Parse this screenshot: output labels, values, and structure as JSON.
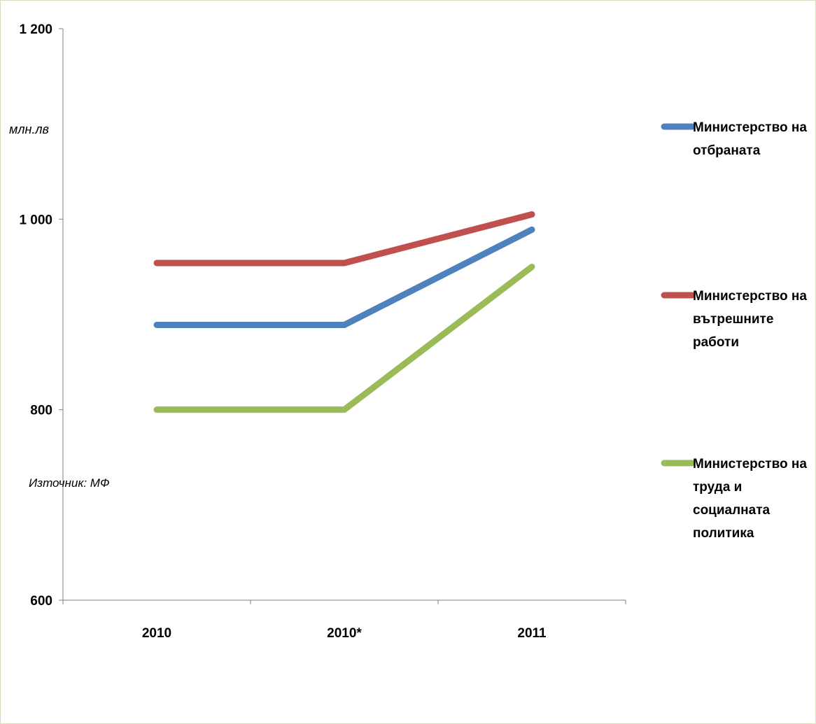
{
  "chart_data": {
    "type": "line",
    "categories": [
      "2010",
      "2010*",
      "2011"
    ],
    "ylim": [
      600,
      1200
    ],
    "yticks": [
      600,
      800,
      1000,
      1200
    ],
    "ytick_labels": [
      "600",
      "800",
      "1 000",
      "1 200"
    ],
    "ylabel": "млн.лв",
    "grid": false,
    "legend_position": "right",
    "series": [
      {
        "name_lines": [
          "Министерство на",
          "отбраната"
        ],
        "color": "#4f81bd",
        "values": [
          889,
          889,
          989
        ]
      },
      {
        "name_lines": [
          "Министерство на",
          "вътрешните",
          "работи"
        ],
        "color": "#c0504d",
        "values": [
          954,
          954,
          1005
        ]
      },
      {
        "name_lines": [
          "Министерство на",
          "труда и",
          "социалната",
          "политика"
        ],
        "color": "#9bbb59",
        "values": [
          800,
          800,
          950
        ]
      }
    ],
    "source": "Източник: МФ"
  }
}
